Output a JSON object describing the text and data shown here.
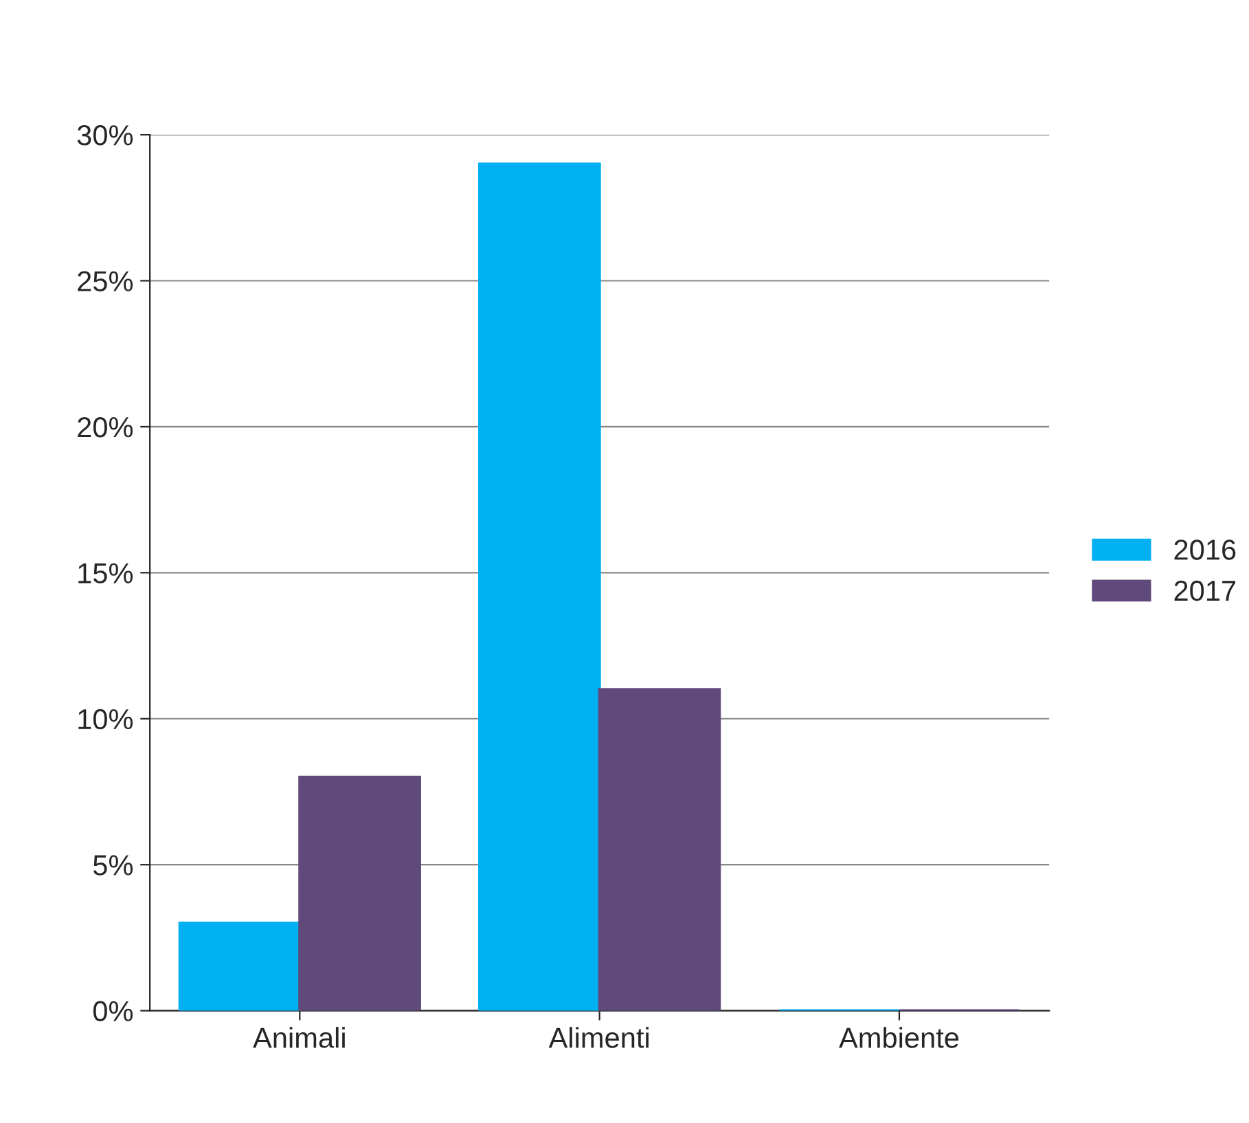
{
  "chart_data": {
    "type": "bar",
    "categories": [
      "Animali",
      "Alimenti",
      "Ambiente"
    ],
    "series": [
      {
        "name": "2016",
        "color": "#00b0f0",
        "values": [
          3,
          29,
          0
        ]
      },
      {
        "name": "2017",
        "color": "#604a7b",
        "values": [
          8,
          11,
          0
        ]
      }
    ],
    "ylim": [
      0,
      30
    ],
    "yticks": [
      {
        "value": 0,
        "label": "0%"
      },
      {
        "value": 5,
        "label": "5%"
      },
      {
        "value": 10,
        "label": "10%"
      },
      {
        "value": 15,
        "label": "15%"
      },
      {
        "value": 20,
        "label": "20%"
      },
      {
        "value": 25,
        "label": "25%"
      },
      {
        "value": 30,
        "label": "30%"
      }
    ],
    "grid": "y",
    "legend": "right"
  }
}
